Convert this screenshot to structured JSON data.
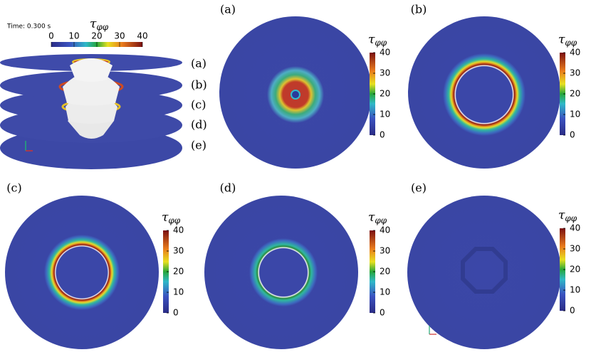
{
  "time_label": "Time: 0.300 s",
  "symbol": {
    "base": "τ",
    "sub": "φφ"
  },
  "colorbar": {
    "ticks": [
      0,
      10,
      20,
      30,
      40
    ]
  },
  "stack_labels": [
    "(a)",
    "(b)",
    "(c)",
    "(d)",
    "(e)"
  ],
  "panels": [
    {
      "label": "(a)"
    },
    {
      "label": "(b)"
    },
    {
      "label": "(c)"
    },
    {
      "label": "(d)"
    },
    {
      "label": "(e)"
    }
  ]
}
